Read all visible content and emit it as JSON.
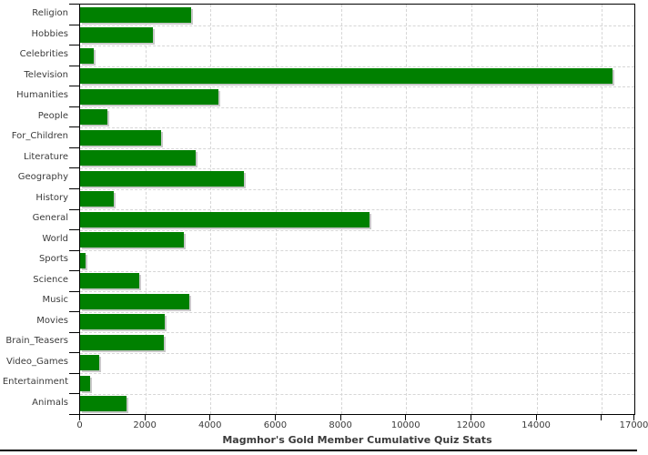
{
  "colors": {
    "bar": "#008000",
    "bar_shadow": "#c9c9c9",
    "grid": "#d6d6d6",
    "axis": "#000000",
    "text": "#3b3b3b",
    "background": "#ffffff"
  },
  "chart_data": {
    "type": "bar",
    "orientation": "horizontal",
    "title": "Magmhor's Gold Member Cumulative Quiz Stats",
    "categories": [
      "Religion",
      "Hobbies",
      "Celebrities",
      "Television",
      "Humanities",
      "People",
      "For_Children",
      "Literature",
      "Geography",
      "History",
      "General",
      "World",
      "Sports",
      "Science",
      "Music",
      "Movies",
      "Brain_Teasers",
      "Video_Games",
      "Entertainment",
      "Animals"
    ],
    "values": [
      3400,
      2220,
      430,
      16320,
      4250,
      840,
      2490,
      3550,
      5030,
      1040,
      8870,
      3190,
      160,
      1820,
      3360,
      2600,
      2570,
      590,
      310,
      1430
    ],
    "xlabel": "",
    "ylabel": "",
    "xlim": [
      0,
      17000
    ],
    "xticks": [
      0,
      2000,
      4000,
      6000,
      8000,
      10000,
      12000,
      14000,
      16000,
      17000
    ],
    "xtick_labels": [
      "0",
      "2000",
      "4000",
      "6000",
      "8000",
      "10000",
      "12000",
      "14000",
      "",
      "17000"
    ],
    "grid": true,
    "legend": false
  }
}
